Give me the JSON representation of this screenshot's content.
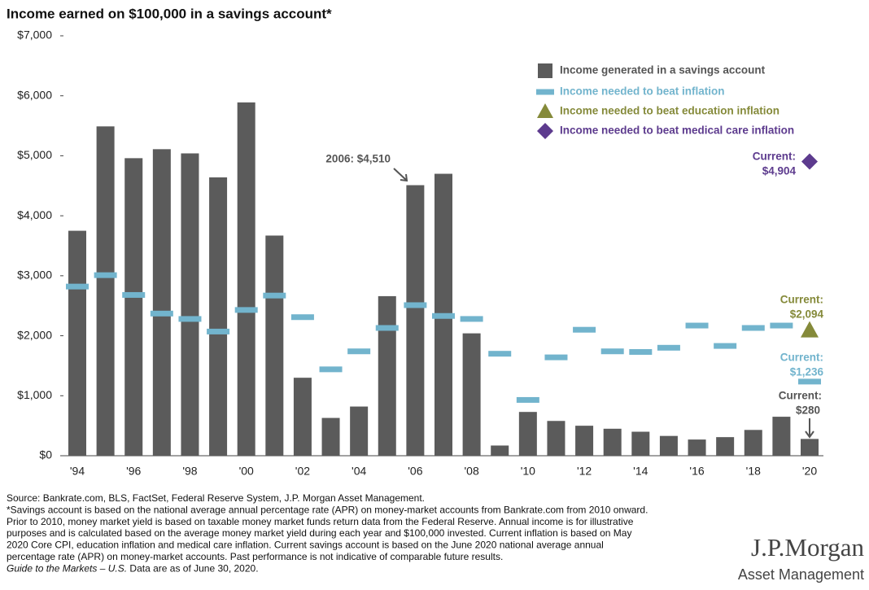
{
  "chart_data": {
    "type": "bar",
    "title": "Income earned on $100,000 in a savings account*",
    "categories": [
      "'94",
      null,
      "'96",
      null,
      "'98",
      null,
      "'00",
      null,
      "'02",
      null,
      "'04",
      null,
      "'06",
      null,
      "'08",
      null,
      "'10",
      null,
      "'12",
      null,
      "'14",
      null,
      "'16",
      null,
      "'18",
      null,
      "'20"
    ],
    "series": [
      {
        "name": "Income generated in a savings account",
        "color": "#5b5b5b",
        "marker": "bar",
        "values": [
          3750,
          5490,
          4960,
          5110,
          5040,
          4640,
          5890,
          3670,
          1300,
          630,
          820,
          2660,
          4510,
          4700,
          2040,
          170,
          730,
          580,
          500,
          450,
          400,
          330,
          270,
          310,
          430,
          650,
          280
        ]
      },
      {
        "name": "Income needed to beat inflation",
        "color": "#72b4cd",
        "marker": "dash",
        "values": [
          2820,
          3010,
          2680,
          2370,
          2280,
          2070,
          2430,
          2670,
          2310,
          1440,
          1740,
          2130,
          2510,
          2330,
          2280,
          1700,
          930,
          1640,
          2100,
          1740,
          1730,
          1800,
          2170,
          1830,
          2130,
          2170,
          1236
        ]
      },
      {
        "name": "Income needed to beat education inflation",
        "color": "#858a3a",
        "marker": "triangle",
        "values": [
          null,
          null,
          null,
          null,
          null,
          null,
          null,
          null,
          null,
          null,
          null,
          null,
          null,
          null,
          null,
          null,
          null,
          null,
          null,
          null,
          null,
          null,
          null,
          null,
          null,
          null,
          2094
        ]
      },
      {
        "name": "Income needed to beat medical care inflation",
        "color": "#5d3b8e",
        "marker": "diamond",
        "values": [
          null,
          null,
          null,
          null,
          null,
          null,
          null,
          null,
          null,
          null,
          null,
          null,
          null,
          null,
          null,
          null,
          null,
          null,
          null,
          null,
          null,
          null,
          null,
          null,
          null,
          null,
          4904
        ]
      }
    ],
    "ylim": [
      0,
      7000
    ],
    "yticks": [
      {
        "value": 0,
        "label": "$0"
      },
      {
        "value": 1000,
        "label": "$1,000"
      },
      {
        "value": 2000,
        "label": "$2,000"
      },
      {
        "value": 3000,
        "label": "$3,000"
      },
      {
        "value": 4000,
        "label": "$4,000"
      },
      {
        "value": 5000,
        "label": "$5,000"
      },
      {
        "value": 6000,
        "label": "$6,000"
      },
      {
        "value": 7000,
        "label": "$7,000"
      }
    ],
    "grid": false,
    "legend": "top-right",
    "annotations": [
      "2006: $4,510",
      "Current:",
      "$4,904",
      "Current:",
      "$2,094",
      "Current:",
      "$1,236",
      "Current:",
      "$280"
    ]
  },
  "footnote": {
    "lines": [
      "Source: Bankrate.com, BLS, FactSet, Federal Reserve System, J.P. Morgan Asset Management.",
      "*Savings account is based on the national average annual percentage rate (APR) on money-market accounts from Bankrate.com from 2010 onward.",
      "Prior to 2010, money market yield is based on taxable money market funds return data from the Federal Reserve. Annual income is for illustrative",
      "purposes and is calculated based on the average money market yield during each year and $100,000 invested. Current inflation is based on May",
      "2020 Core CPI, education inflation and medical care inflation. Current savings account is based on the June 2020 national average annual",
      "percentage rate (APR) on money-market accounts. Past performance is not indicative of comparable future results."
    ],
    "guide": "Guide to the Markets – U.S.",
    "date": " Data are as of June 30, 2020."
  },
  "logo": {
    "name": "J.P.Morgan",
    "division": "Asset Management"
  }
}
